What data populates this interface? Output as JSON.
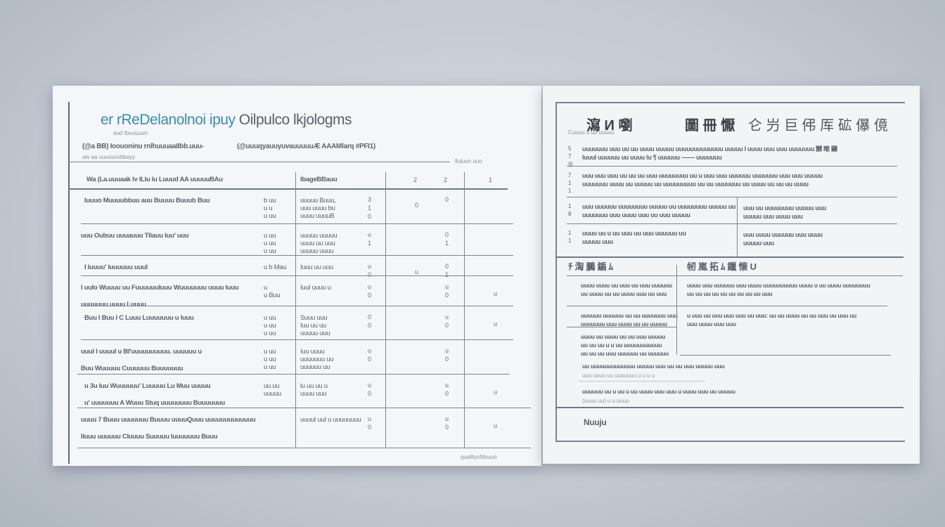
{
  "left_doc": {
    "title_accent": "er rReDelanolnoi ipuy",
    "title_rest": "Oilpulco lkjologms",
    "subtitle_small": "aud Ibuuuuun",
    "info_line_1": "(@a BB) Ioouoninu rnlhuuuaaIIbb.uuu-",
    "info_line_2": "(@uuuqyauuyuvauuuuuÆ AAAMlarq #PFI1)",
    "info_line_3": "aw aa   uuuuuxxbbayy",
    "ref_right": "lluluun uuo",
    "header": {
      "col1": "Wa (La.uuuaak lv lLlu lu Luuud AA uuuuuBAu",
      "col2": "IbageBBauu",
      "col3": "2",
      "col4": "2",
      "col5": "1"
    },
    "rows": [
      {
        "desc": [
          "Iuuuo Muuuubbuu auu Buuuu Buuub Buu",
          "",
          ""
        ],
        "mid": [
          "b uu",
          "u u",
          "u uu"
        ],
        "detail": [
          "uuuuu Buuu,",
          "uuu uuuu bu",
          "uuuu uuuuB"
        ],
        "n1": "3\n1\n0",
        "n2": "0",
        "n3": "0",
        "n4": ""
      },
      {
        "desc": [
          "uuu Oubuu uuuauuu Tliauu Iuu' uuu"
        ],
        "mid": [
          "u uu",
          "u uu",
          "u uu"
        ],
        "detail": [
          "uuuuu uuuuu",
          "uuuu uu uuu",
          "uuuuu uuuu"
        ],
        "n1": "u\n1",
        "n2": "",
        "n3": "0\n1",
        "n4": ""
      },
      {
        "desc": [
          "I luuuu' luuuuuu uuuI"
        ],
        "mid": [
          "u  b Mau"
        ],
        "detail": [
          "Iuuu uu uuu"
        ],
        "n1": "u\n0",
        "n2": "u",
        "n3": "0\n1",
        "n4": ""
      },
      {
        "desc": [
          "I uuIo Wuuuu uu Fuuuuuuluuu Wuuuuuuu uuuu Iuuu",
          "uuuuuuu uuuu Luuuu"
        ],
        "mid": [
          "u",
          "u  Buu"
        ],
        "detail": [
          "Iuul uuuu u"
        ],
        "n1": "u\n0",
        "n2": "",
        "n3": "u\n0",
        "n4": "u"
      },
      {
        "desc": [
          "Buu I Buu I C Luuu Luuuuuuu u luuu"
        ],
        "mid": [
          "u uu",
          "u uu",
          "u uu"
        ],
        "detail": [
          "Suuu uuu",
          "Iuu uu uu",
          "uuuuu uuu"
        ],
        "n1": "0\n0",
        "n2": "",
        "n3": "u\n0",
        "n4": "u"
      },
      {
        "desc": [
          "uuuI I uuuuI u BI'uuuuuuuuuu. uuuuuu u",
          "Buu Wuuuuu Cuuuuuu Buuuuuuu"
        ],
        "mid": [
          "u uu",
          "u uu",
          "u uu"
        ],
        "detail": [
          "Iuu uuuu",
          "uuuuuuu uu",
          "uuuuuu uu"
        ],
        "n1": "u\n0",
        "n2": "",
        "n3": "u\n0",
        "n4": ""
      },
      {
        "desc": [
          "u 3u Iuu Wuuuuuu' Luuuuu Lu Muu uuuuu",
          "u' uuuuuuu A Wuuu Stuq uuuuuuuu Buuuuuuu"
        ],
        "mid": [
          "uu uu",
          "uuuuu"
        ],
        "detail": [
          "lu uu uu u",
          "uuuu uuu"
        ],
        "n1": "u\n0",
        "n2": "",
        "n3": "u\n0",
        "n4": "u"
      },
      {
        "desc": [
          "uuuu 7 Buuu uuuuuuu Buuuu uuuuQuuu uuuuuuuuuuuuu",
          "Iluuu uuuuuu Cluuuu Suuuuu    Iuuuuuuu Buuu"
        ],
        "mid": [
          ""
        ],
        "detail": [
          "uuuuI uuI u uuuuuuuu"
        ],
        "n1": "u\n0",
        "n2": "",
        "n3": "u\n0",
        "n4": "u"
      }
    ],
    "footer": "qualityofdsuuo"
  },
  "right_doc": {
    "title_left": "瀉 И 嚠",
    "title_mid": "圖 冊 懨",
    "title_right": "仑 屶 巨 伄 厍 砿 儤 傹",
    "caption": "Cuuuu u uu  uuuuu",
    "section1": [
      {
        "lines": [
          "uuuuuuu uuu uu uu uuuu uuuuu uuuuuuuuuuuuu uuuuu I uuuu uuu uuu uuuuuuu 嬲 睢 鼸",
          "Iuuul uuuuuu uu uuuu lu ¶ uuuuuu ------- uuuuuuu"
        ],
        "markers": "5\n7\n(i)"
      },
      {
        "lines": [
          "uuu uuu uuu uu uu uu uuu uuuuuuuu uu u uuu uuu uuuuuu uuuuuuu uuu uuu uuuuu",
          "uuuuuuu uuuu uu uuuuu uu uuuuuuuuu uu uu uuuuuuu uu uuuu uu uu uu uuuu"
        ],
        "markers": "7\n1\n1"
      },
      {
        "lines": [
          "uuu uuuuuu uuuuuuuu uuuuu uu uuuuuuuu uuuuu uu",
          "uuuuuuu uuu uuuu uuu uu uuu uuuuu"
        ],
        "markers": "1\n8"
      },
      {
        "lines": [
          "uuuu uu u uu uuu uu uuu uuuuuu uu",
          "uuuuu uuu"
        ],
        "markers": "1\n1"
      }
    ],
    "section1_right": [
      {
        "lines": [
          "uuu uu uuuuuuuu uuuuu uuu",
          "uuuuu uuu uuuu uuu"
        ]
      },
      {
        "lines": [
          "uuu uuuu uuuuuu uuu uuuu",
          "uuuuu uuu"
        ]
      }
    ],
    "section2_head_left": "ﾁ 渹 鵩 鍎 ﾑ",
    "section2_head_right": "㠴 嵐 拓 ﾑ 鑞 懐 U",
    "section2_left": [
      {
        "lines": [
          "uuuu uuuu uu uuu uu uuu uuuuuu",
          "uu uuuu uu uu uuuu uuu uu uuu"
        ]
      },
      {
        "lines": [
          "uuuuuu uuuuuu uu uu uuuuuuu uuu",
          "uuuuuuu uuu uuuu uu uu uuuuu"
        ]
      },
      {
        "lines": [
          "uuuu uu uuuu uu uu uuu uuuuu",
          "uu uu uu u u uu uuuuuuuuuuu",
          "uu uu uu uuu uuuuuu uu uuuuuu"
        ]
      }
    ],
    "section2_right": [
      {
        "lines": [
          "uuuu uuu uuuuuu uuu uuuu uuuuuuuuuu uuuu u uu uuuu uuuuuuuu",
          "uu uu uu uu uu uu uu uu uu uuu"
        ]
      },
      {
        "lines": [
          "u uuu uu uuu uuu uuu uu uuu: uu uu uuuu uu uu uuu uu uuu uu",
          "uuu uuuu uuu uuu"
        ]
      }
    ],
    "notes": [
      "uu uuuuuuuuuuuuu uuuuu uuu uu uu uuu uuuuu uuu",
      "uuu uuuu uu uuuuuuu  u u u u",
      "uuuuuu uu u uu u uu uuuu uuu uuu u uuuu uuu uu uuuuu",
      "(uuuu uu) u u uuuu"
    ],
    "signature_label": "Nuuju"
  }
}
